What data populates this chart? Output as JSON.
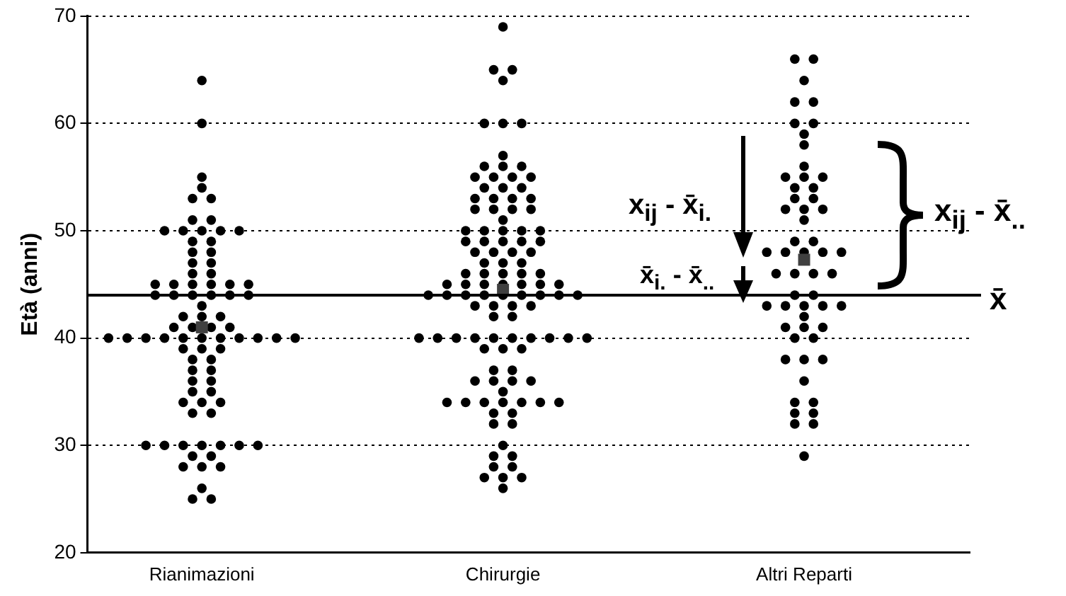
{
  "chart_data": {
    "type": "scatter",
    "categories": [
      "Rianimazioni",
      "Chirurgie",
      "Altri Reparti"
    ],
    "ylabel": "Età (anni)",
    "ylim": [
      20,
      70
    ],
    "yticks": [
      20,
      30,
      40,
      50,
      60,
      70
    ],
    "grid": "y",
    "legend": false,
    "marker": "circle",
    "series": [
      {
        "type": "scatter",
        "color": "#000000",
        "x": [
          "Rianimazioni",
          "Rianimazioni",
          "Rianimazioni",
          "Rianimazioni",
          "Rianimazioni",
          "Rianimazioni",
          "Rianimazioni",
          "Rianimazioni",
          "Rianimazioni",
          "Rianimazioni",
          "Rianimazioni",
          "Rianimazioni",
          "Rianimazioni",
          "Rianimazioni",
          "Rianimazioni",
          "Rianimazioni",
          "Rianimazioni",
          "Rianimazioni",
          "Rianimazioni",
          "Rianimazioni",
          "Rianimazioni",
          "Rianimazioni",
          "Rianimazioni",
          "Rianimazioni",
          "Rianimazioni",
          "Rianimazioni",
          "Rianimazioni",
          "Rianimazioni",
          "Rianimazioni",
          "Rianimazioni",
          "Rianimazioni",
          "Rianimazioni",
          "Rianimazioni",
          "Rianimazioni",
          "Rianimazioni",
          "Rianimazioni",
          "Rianimazioni",
          "Rianimazioni",
          "Rianimazioni",
          "Rianimazioni",
          "Rianimazioni",
          "Rianimazioni",
          "Rianimazioni",
          "Rianimazioni",
          "Rianimazioni",
          "Rianimazioni",
          "Rianimazioni",
          "Rianimazioni",
          "Rianimazioni",
          "Rianimazioni",
          "Rianimazioni",
          "Rianimazioni",
          "Rianimazioni",
          "Rianimazioni",
          "Rianimazioni",
          "Rianimazioni",
          "Rianimazioni",
          "Rianimazioni",
          "Rianimazioni",
          "Rianimazioni",
          "Rianimazioni",
          "Rianimazioni",
          "Rianimazioni",
          "Rianimazioni",
          "Rianimazioni",
          "Rianimazioni",
          "Rianimazioni",
          "Rianimazioni",
          "Rianimazioni",
          "Rianimazioni",
          "Rianimazioni",
          "Rianimazioni",
          "Rianimazioni",
          "Rianimazioni",
          "Rianimazioni",
          "Rianimazioni",
          "Rianimazioni",
          "Rianimazioni",
          "Rianimazioni",
          "Rianimazioni",
          "Rianimazioni",
          "Rianimazioni",
          "Rianimazioni"
        ],
        "values": [
          64,
          60,
          55,
          54,
          53,
          53,
          51,
          51,
          50,
          50,
          50,
          50,
          50,
          49,
          49,
          48,
          48,
          47,
          47,
          46,
          46,
          45,
          45,
          45,
          45,
          45,
          45,
          44,
          44,
          44,
          44,
          44,
          44,
          43,
          42,
          42,
          42,
          41,
          41,
          41,
          41,
          40,
          40,
          40,
          40,
          40,
          40,
          40,
          40,
          40,
          40,
          40,
          39,
          39,
          39,
          38,
          38,
          37,
          37,
          36,
          36,
          35,
          35,
          34,
          34,
          34,
          33,
          33,
          30,
          30,
          30,
          30,
          30,
          30,
          30,
          29,
          29,
          28,
          28,
          28,
          26,
          25,
          25
        ]
      },
      {
        "type": "scatter",
        "color": "#000000",
        "x": [
          "Chirurgie",
          "Chirurgie",
          "Chirurgie",
          "Chirurgie",
          "Chirurgie",
          "Chirurgie",
          "Chirurgie",
          "Chirurgie",
          "Chirurgie",
          "Chirurgie",
          "Chirurgie",
          "Chirurgie",
          "Chirurgie",
          "Chirurgie",
          "Chirurgie",
          "Chirurgie",
          "Chirurgie",
          "Chirurgie",
          "Chirurgie",
          "Chirurgie",
          "Chirurgie",
          "Chirurgie",
          "Chirurgie",
          "Chirurgie",
          "Chirurgie",
          "Chirurgie",
          "Chirurgie",
          "Chirurgie",
          "Chirurgie",
          "Chirurgie",
          "Chirurgie",
          "Chirurgie",
          "Chirurgie",
          "Chirurgie",
          "Chirurgie",
          "Chirurgie",
          "Chirurgie",
          "Chirurgie",
          "Chirurgie",
          "Chirurgie",
          "Chirurgie",
          "Chirurgie",
          "Chirurgie",
          "Chirurgie",
          "Chirurgie",
          "Chirurgie",
          "Chirurgie",
          "Chirurgie",
          "Chirurgie",
          "Chirurgie",
          "Chirurgie",
          "Chirurgie",
          "Chirurgie",
          "Chirurgie",
          "Chirurgie",
          "Chirurgie",
          "Chirurgie",
          "Chirurgie",
          "Chirurgie",
          "Chirurgie",
          "Chirurgie",
          "Chirurgie",
          "Chirurgie",
          "Chirurgie",
          "Chirurgie",
          "Chirurgie",
          "Chirurgie",
          "Chirurgie",
          "Chirurgie",
          "Chirurgie",
          "Chirurgie",
          "Chirurgie",
          "Chirurgie",
          "Chirurgie",
          "Chirurgie",
          "Chirurgie",
          "Chirurgie",
          "Chirurgie",
          "Chirurgie",
          "Chirurgie",
          "Chirurgie",
          "Chirurgie",
          "Chirurgie",
          "Chirurgie",
          "Chirurgie",
          "Chirurgie",
          "Chirurgie",
          "Chirurgie",
          "Chirurgie",
          "Chirurgie",
          "Chirurgie",
          "Chirurgie",
          "Chirurgie",
          "Chirurgie",
          "Chirurgie",
          "Chirurgie",
          "Chirurgie",
          "Chirurgie",
          "Chirurgie",
          "Chirurgie",
          "Chirurgie",
          "Chirurgie",
          "Chirurgie",
          "Chirurgie",
          "Chirurgie",
          "Chirurgie",
          "Chirurgie",
          "Chirurgie",
          "Chirurgie",
          "Chirurgie",
          "Chirurgie"
        ],
        "values": [
          69,
          65,
          65,
          64,
          60,
          60,
          60,
          57,
          56,
          56,
          56,
          55,
          55,
          55,
          55,
          54,
          54,
          54,
          53,
          53,
          53,
          53,
          52,
          52,
          52,
          52,
          51,
          50,
          50,
          50,
          50,
          50,
          49,
          49,
          49,
          49,
          49,
          48,
          48,
          48,
          48,
          47,
          47,
          47,
          46,
          46,
          46,
          46,
          46,
          45,
          45,
          45,
          45,
          45,
          45,
          45,
          44,
          44,
          44,
          44,
          44,
          44,
          44,
          44,
          44,
          43,
          43,
          43,
          43,
          42,
          42,
          40,
          40,
          40,
          40,
          40,
          40,
          40,
          40,
          40,
          40,
          39,
          39,
          39,
          37,
          37,
          36,
          36,
          36,
          36,
          35,
          34,
          34,
          34,
          34,
          34,
          34,
          34,
          33,
          33,
          32,
          32,
          30,
          29,
          29,
          28,
          28,
          27,
          27,
          27,
          26
        ]
      },
      {
        "type": "scatter",
        "color": "#000000",
        "x": [
          "Altri Reparti",
          "Altri Reparti",
          "Altri Reparti",
          "Altri Reparti",
          "Altri Reparti",
          "Altri Reparti",
          "Altri Reparti",
          "Altri Reparti",
          "Altri Reparti",
          "Altri Reparti",
          "Altri Reparti",
          "Altri Reparti",
          "Altri Reparti",
          "Altri Reparti",
          "Altri Reparti",
          "Altri Reparti",
          "Altri Reparti",
          "Altri Reparti",
          "Altri Reparti",
          "Altri Reparti",
          "Altri Reparti",
          "Altri Reparti",
          "Altri Reparti",
          "Altri Reparti",
          "Altri Reparti",
          "Altri Reparti",
          "Altri Reparti",
          "Altri Reparti",
          "Altri Reparti",
          "Altri Reparti",
          "Altri Reparti",
          "Altri Reparti",
          "Altri Reparti",
          "Altri Reparti",
          "Altri Reparti",
          "Altri Reparti",
          "Altri Reparti",
          "Altri Reparti",
          "Altri Reparti",
          "Altri Reparti",
          "Altri Reparti",
          "Altri Reparti",
          "Altri Reparti",
          "Altri Reparti",
          "Altri Reparti",
          "Altri Reparti",
          "Altri Reparti",
          "Altri Reparti",
          "Altri Reparti",
          "Altri Reparti",
          "Altri Reparti",
          "Altri Reparti",
          "Altri Reparti",
          "Altri Reparti",
          "Altri Reparti",
          "Altri Reparti"
        ],
        "values": [
          66,
          66,
          64,
          62,
          62,
          60,
          60,
          59,
          58,
          56,
          55,
          55,
          55,
          54,
          54,
          53,
          53,
          52,
          52,
          52,
          51,
          49,
          49,
          48,
          48,
          48,
          48,
          48,
          46,
          46,
          46,
          46,
          44,
          44,
          43,
          43,
          43,
          43,
          43,
          42,
          41,
          41,
          41,
          40,
          40,
          38,
          38,
          38,
          36,
          34,
          34,
          33,
          33,
          32,
          32,
          29
        ]
      },
      {
        "type": "scatter",
        "color": "#404040",
        "marker": "square",
        "x": [
          "Rianimazioni",
          "Chirurgie",
          "Altri Reparti"
        ],
        "values": [
          41,
          44.5,
          47.3
        ]
      }
    ],
    "ref_lines": [
      {
        "axis": "y",
        "value": 44,
        "label": "x̄",
        "color": "#000000"
      }
    ],
    "annotations": [
      "x$_{ij}$ - x̄$_{i.}$",
      "x̄$_{i.}$ - x̄$_{..}$",
      "x$_{ij}$ - x̄$_{..}$"
    ]
  }
}
